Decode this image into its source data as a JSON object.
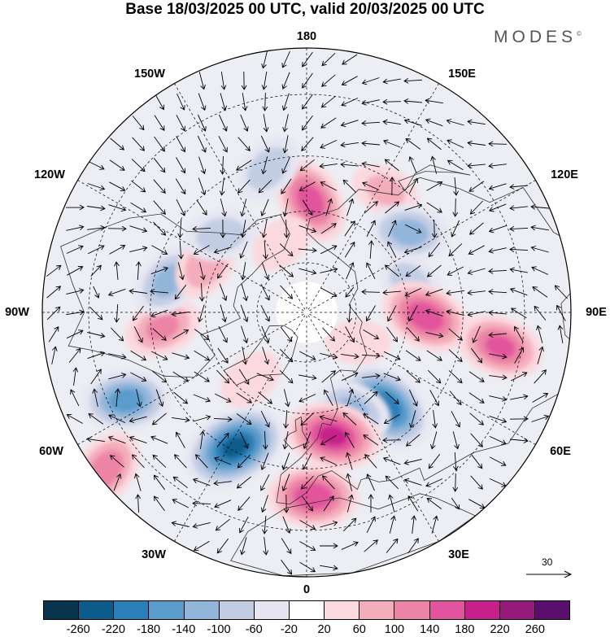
{
  "title": "Base 18/03/2025 00 UTC, valid 20/03/2025 00 UTC",
  "brand": {
    "name": "MODES",
    "mark": "©"
  },
  "longitude_labels": [
    "180",
    "150E",
    "120E",
    "90E",
    "60E",
    "30E",
    "0",
    "30W",
    "60W",
    "90W",
    "120W",
    "150W"
  ],
  "reference_vector": {
    "label": "30"
  },
  "colorbar": {
    "colors": [
      "#08344e",
      "#0b5c8a",
      "#2a7fb8",
      "#5a9ccc",
      "#92b6da",
      "#c3cde4",
      "#e5e6f2",
      "#ffffff",
      "#fbd9de",
      "#f4adbb",
      "#ec84a6",
      "#e2549d",
      "#c8208a",
      "#961a7a",
      "#5a0f6e"
    ],
    "ticks": [
      "-260",
      "-220",
      "-180",
      "-140",
      "-100",
      "-60",
      "-20",
      "20",
      "60",
      "100",
      "140",
      "180",
      "220",
      "260"
    ]
  },
  "map": {
    "anomaly_centers": [
      {
        "lon": 178,
        "lat": 57,
        "value": 150
      },
      {
        "lon": 147,
        "lat": 48,
        "value": 60
      },
      {
        "lon": 128,
        "lat": 52,
        "value": -110
      },
      {
        "lon": 105,
        "lat": 58,
        "value": -80
      },
      {
        "lon": 88,
        "lat": 55,
        "value": 160
      },
      {
        "lon": 80,
        "lat": 35,
        "value": 140
      },
      {
        "lon": 40,
        "lat": 54,
        "value": -200
      },
      {
        "lon": 25,
        "lat": 58,
        "value": -100
      },
      {
        "lon": 12,
        "lat": 53,
        "value": 180
      },
      {
        "lon": 2,
        "lat": 38,
        "value": 160
      },
      {
        "lon": -28,
        "lat": 46,
        "value": -220
      },
      {
        "lon": -52,
        "lat": 22,
        "value": 120
      },
      {
        "lon": -64,
        "lat": 34,
        "value": -150
      },
      {
        "lon": -84,
        "lat": 48,
        "value": 100
      },
      {
        "lon": -103,
        "lat": 49,
        "value": -110
      },
      {
        "lon": -116,
        "lat": 57,
        "value": 90
      },
      {
        "lon": -132,
        "lat": 56,
        "value": -80
      },
      {
        "lon": -165,
        "lat": 47,
        "value": -80
      },
      {
        "lon": -160,
        "lat": 68,
        "value": 40
      },
      {
        "lon": 60,
        "lat": 72,
        "value": 40
      },
      {
        "lon": -40,
        "lat": 64,
        "value": 50
      }
    ]
  }
}
